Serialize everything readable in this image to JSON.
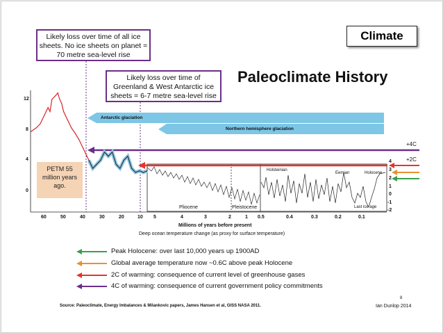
{
  "slide": {
    "climate_label": "Climate",
    "title": "Paleoclimate History",
    "page_number": "8",
    "author": "Ian Dunlop 2014",
    "source": "Source: Paleoclimate, Energy Imbalances & Milankovic papers, James Hansen et al, GISS NASA 2011."
  },
  "callouts": {
    "all_ice": [
      "Likely loss over time of all ice",
      "sheets. No ice sheets on planet =",
      "70 metre sea-level rise"
    ],
    "greenland": [
      "Likely loss over time of",
      "Greenland & West Antarctic ice",
      "sheets = 6-7 metre sea-level rise"
    ],
    "petm": [
      "PETM 55",
      "million years",
      "ago."
    ]
  },
  "chart_data": {
    "type": "line",
    "xlabel": "Millions of years before present",
    "caption": "Deep ocean temperature change (as proxy for surface temperature)",
    "y_ticks_left": [
      "12",
      "8",
      "4",
      "0"
    ],
    "y_ticks_right": [
      "4",
      "3",
      "2",
      "1",
      "0",
      "-1",
      "-2"
    ],
    "x_ticks_main": [
      "60",
      "50",
      "40",
      "30",
      "20",
      "10",
      "5",
      "4",
      "3",
      "2",
      "1",
      "0.5"
    ],
    "x_ticks_inset": [
      "0.4",
      "0.3",
      "0.2",
      "0.1"
    ],
    "epoch_labels": [
      "Pliocene",
      "Pleistocene",
      "Holsteinian",
      "Eemian",
      "Holocene",
      "Last ice age"
    ],
    "glaciation_bars": [
      {
        "name": "Antarctic glaciation",
        "color": "#7dc6e6"
      },
      {
        "name": "Northern hemisphere glaciation",
        "color": "#7dc6e6"
      }
    ],
    "warming_levels": [
      {
        "name": "+4C",
        "color": "#6a2e8a"
      },
      {
        "name": "+2C",
        "color": "#e8322d"
      }
    ],
    "series": [
      {
        "name": "deep_ocean_temp_60_to_35Ma",
        "color": "#d7242a",
        "x": [
          65,
          62,
          60,
          58,
          56,
          55,
          54,
          52,
          51,
          50,
          49,
          48,
          46,
          44,
          42,
          40,
          38,
          36,
          35
        ],
        "y": [
          8.0,
          8.5,
          9.0,
          10.0,
          11.0,
          10.5,
          12.0,
          12.5,
          12.8,
          12.0,
          11.5,
          10.5,
          9.5,
          8.5,
          7.8,
          7.0,
          6.0,
          5.0,
          4.5
        ]
      },
      {
        "name": "deep_ocean_temp_35_to_5Ma",
        "color": "#333333",
        "x": [
          35,
          33,
          31,
          29,
          27,
          25,
          23,
          21,
          19,
          17,
          15,
          13,
          11,
          9,
          7,
          5
        ],
        "y": [
          4.5,
          3.5,
          4.0,
          4.5,
          5.5,
          5.0,
          5.5,
          4.0,
          3.5,
          4.5,
          5.0,
          3.5,
          3.0,
          3.2,
          3.0,
          3.2
        ]
      }
    ]
  },
  "legend": [
    {
      "color": "#3aa049",
      "text": "Peak Holocene: over last 10,000 years up 1900AD"
    },
    {
      "color": "#e69232",
      "text": "Global average temperature now ~0.6C above peak Holocene"
    },
    {
      "color": "#e8322d",
      "text": "2C of warming: consequence of current level of greenhouse gases"
    },
    {
      "color": "#6a2e8a",
      "text": "4C of warming: consequence of current government policy commitments"
    }
  ]
}
